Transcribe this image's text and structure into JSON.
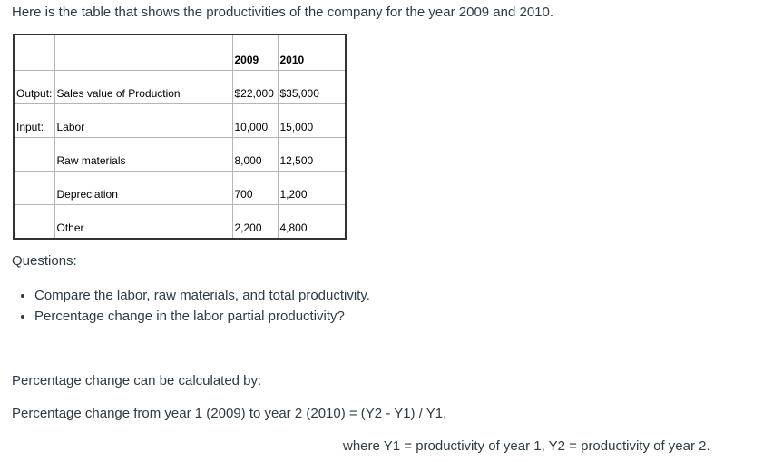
{
  "intro": "Here is the table that shows the productivities of the company for the year 2009 and 2010.",
  "table": {
    "headers": [
      "2009",
      "2010"
    ],
    "rows": [
      {
        "group": "Output:",
        "item": "Sales value of Production",
        "values": [
          "$22,000",
          "$35,000"
        ]
      },
      {
        "group": "Input:",
        "item": "Labor",
        "values": [
          "10,000",
          "15,000"
        ]
      },
      {
        "item": "Raw materials",
        "values": [
          "8,000",
          "12,500"
        ]
      },
      {
        "item": "Depreciation",
        "values": [
          "700",
          "1,200"
        ]
      },
      {
        "item": "Other",
        "values": [
          "2,200",
          "4,800"
        ]
      }
    ]
  },
  "questions": {
    "heading": "Questions:",
    "items": [
      "Compare the labor, raw materials, and total productivity.",
      "Percentage change in the labor partial productivity?"
    ]
  },
  "formula": {
    "lead": "Percentage change can be calculated by:",
    "equation": "Percentage change from year 1 (2009) to year 2 (2010) = (Y2 - Y1) / Y1,",
    "where": "where Y1 = productivity of year 1, Y2 = productivity of year 2."
  }
}
